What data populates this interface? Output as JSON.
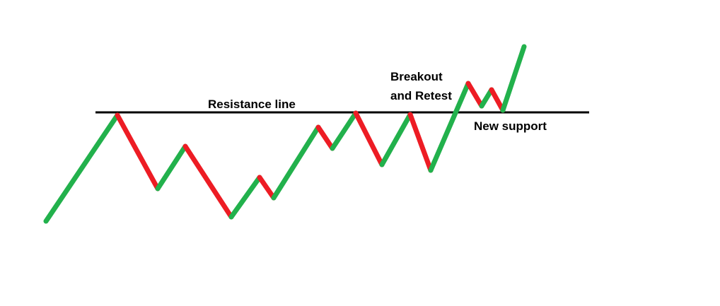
{
  "labels": {
    "resistance": "Resistance line",
    "breakout_line1": "Breakout",
    "breakout_line2": "and Retest",
    "support": "New support"
  },
  "colors": {
    "up": "#22b14c",
    "down": "#ed1c24",
    "level": "#000000",
    "background": "#ffffff"
  }
}
